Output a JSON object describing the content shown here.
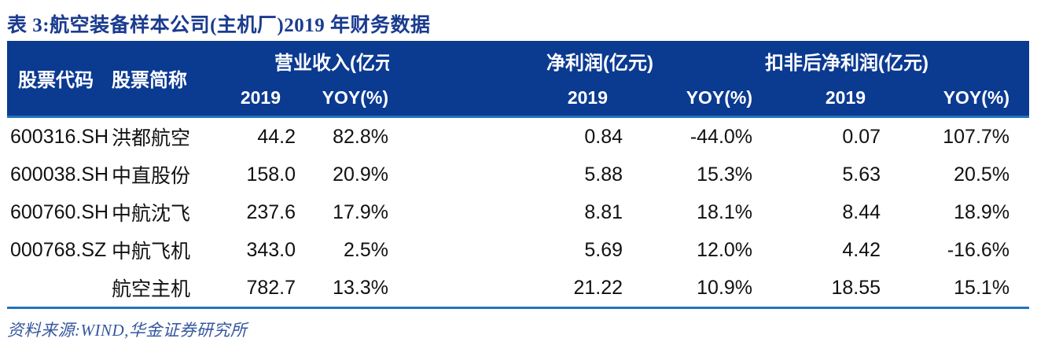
{
  "title": "表 3:航空装备样本公司(主机厂)2019 年财务数据",
  "table": {
    "header": {
      "stock_code": "股票代码",
      "stock_name": "股票简称",
      "group_revenue": "营业收入(亿元)",
      "group_net_profit": "净利润(亿元)",
      "group_deducted_net_profit": "扣非后净利润(亿元)",
      "sub_year": "2019",
      "sub_yoy": "YOY(%)"
    },
    "rows": [
      {
        "code": "600316.SH",
        "name": "洪都航空",
        "rev_2019": "44.2",
        "rev_yoy": "82.8%",
        "np_2019": "0.84",
        "np_yoy": "-44.0%",
        "ded_2019": "0.07",
        "ded_yoy": "107.7%"
      },
      {
        "code": "600038.SH",
        "name": "中直股份",
        "rev_2019": "158.0",
        "rev_yoy": "20.9%",
        "np_2019": "5.88",
        "np_yoy": "15.3%",
        "ded_2019": "5.63",
        "ded_yoy": "20.5%"
      },
      {
        "code": "600760.SH",
        "name": "中航沈飞",
        "rev_2019": "237.6",
        "rev_yoy": "17.9%",
        "np_2019": "8.81",
        "np_yoy": "18.1%",
        "ded_2019": "8.44",
        "ded_yoy": "18.9%"
      },
      {
        "code": "000768.SZ",
        "name": "中航飞机",
        "rev_2019": "343.0",
        "rev_yoy": "2.5%",
        "np_2019": "5.69",
        "np_yoy": "12.0%",
        "ded_2019": "4.42",
        "ded_yoy": "-16.6%"
      },
      {
        "code": "",
        "name": "航空主机",
        "rev_2019": "782.7",
        "rev_yoy": "13.3%",
        "np_2019": "21.22",
        "np_yoy": "10.9%",
        "ded_2019": "18.55",
        "ded_yoy": "15.1%"
      }
    ]
  },
  "source_note": "资料来源:WIND,华金证券研究所",
  "colors": {
    "header_bg": "#0b3a91",
    "title": "#1a3b8f",
    "rule": "#2273be",
    "source": "#35579e",
    "body_text": "#111111"
  }
}
